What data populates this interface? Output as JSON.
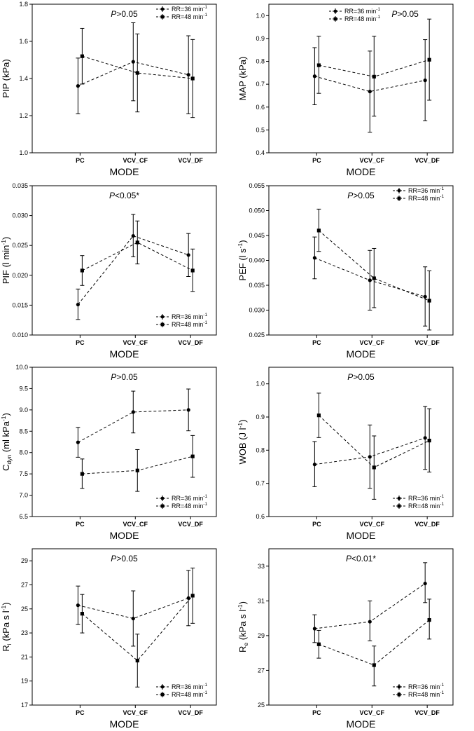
{
  "figure": {
    "background": "#ffffff",
    "ink": "#000000"
  },
  "chart_data": [
    {
      "id": "pip",
      "type": "line",
      "ylabel": "PIP (kPa)",
      "ylabel_parts": [
        {
          "t": "PIP (kPa)"
        }
      ],
      "xlabel": "MODE",
      "categories": [
        "PC",
        "VCV_CF",
        "VCV_DF"
      ],
      "ylim": [
        1.0,
        1.8
      ],
      "yticks": [
        "1.0",
        "1.2",
        "1.4",
        "1.6",
        "1.8"
      ],
      "annotation": {
        "italic": "P",
        "rest": ">0.05",
        "pos": "top-center"
      },
      "legend": {
        "pos": "top-right",
        "entries": [
          "RR=36 min",
          "RR=48 min"
        ],
        "sup": "-1"
      },
      "series": [
        {
          "name": "RR=36 min-1",
          "marker": "circle",
          "values": [
            1.36,
            1.49,
            1.42
          ],
          "err_low": [
            1.21,
            1.28,
            1.21
          ],
          "err_high": [
            1.51,
            1.7,
            1.63
          ]
        },
        {
          "name": "RR=48 min-1",
          "marker": "square",
          "values": [
            1.52,
            1.43,
            1.4
          ],
          "err_low": [
            1.37,
            1.22,
            1.19
          ],
          "err_high": [
            1.67,
            1.64,
            1.61
          ]
        }
      ]
    },
    {
      "id": "map",
      "type": "line",
      "ylabel": "MAP (kPa)",
      "ylabel_parts": [
        {
          "t": "MAP (kPa)"
        }
      ],
      "xlabel": "MODE",
      "categories": [
        "PC",
        "VCV_CF",
        "VCV_DF"
      ],
      "ylim": [
        0.4,
        1.05
      ],
      "yticks": [
        "0.4",
        "0.5",
        "0.6",
        "0.7",
        "0.8",
        "0.9",
        "1.0"
      ],
      "annotation": {
        "italic": "P",
        "rest": ">0.05",
        "pos": "top-right"
      },
      "legend": {
        "pos": "top-left",
        "entries": [
          "RR=36 min",
          "RR=48 min"
        ],
        "sup": "-1"
      },
      "series": [
        {
          "name": "RR=36 min-1",
          "marker": "circle",
          "values": [
            0.735,
            0.668,
            0.717
          ],
          "err_low": [
            0.61,
            0.49,
            0.54
          ],
          "err_high": [
            0.86,
            0.845,
            0.895
          ]
        },
        {
          "name": "RR=48 min-1",
          "marker": "square",
          "values": [
            0.783,
            0.733,
            0.807
          ],
          "err_low": [
            0.66,
            0.56,
            0.63
          ],
          "err_high": [
            0.91,
            0.91,
            0.985
          ]
        }
      ]
    },
    {
      "id": "pif",
      "type": "line",
      "ylabel": "PIF (l min-1)",
      "ylabel_parts": [
        {
          "t": "PIF (l min"
        },
        {
          "t": "-1",
          "sup": true
        },
        {
          "t": ")"
        }
      ],
      "xlabel": "MODE",
      "categories": [
        "PC",
        "VCV_CF",
        "VCV_DF"
      ],
      "ylim": [
        0.01,
        0.035
      ],
      "yticks": [
        "0.010",
        "0.015",
        "0.020",
        "0.025",
        "0.030",
        "0.035"
      ],
      "annotation": {
        "italic": "P",
        "rest": "<0.05*",
        "pos": "top-center"
      },
      "legend": {
        "pos": "bottom-right",
        "entries": [
          "RR=36 min",
          "RR=48 min"
        ],
        "sup": "-1"
      },
      "series": [
        {
          "name": "RR=36 min-1",
          "marker": "circle",
          "values": [
            0.0151,
            0.0266,
            0.0234
          ],
          "err_low": [
            0.0126,
            0.0231,
            0.0198
          ],
          "err_high": [
            0.0177,
            0.0302,
            0.027
          ]
        },
        {
          "name": "RR=48 min-1",
          "marker": "square",
          "values": [
            0.0208,
            0.0255,
            0.0208
          ],
          "err_low": [
            0.0183,
            0.0219,
            0.0173
          ],
          "err_high": [
            0.0233,
            0.0291,
            0.0244
          ]
        }
      ]
    },
    {
      "id": "pef",
      "type": "line",
      "ylabel": "PEF (l s-1)",
      "ylabel_parts": [
        {
          "t": "PEF (l s"
        },
        {
          "t": "-1",
          "sup": true
        },
        {
          "t": ")"
        }
      ],
      "xlabel": "MODE",
      "categories": [
        "PC",
        "VCV_CF",
        "VCV_DF"
      ],
      "ylim": [
        0.025,
        0.055
      ],
      "yticks": [
        "0.025",
        "0.030",
        "0.035",
        "0.040",
        "0.045",
        "0.050",
        "0.055"
      ],
      "annotation": {
        "italic": "P",
        "rest": ">0.05",
        "pos": "top-center"
      },
      "legend": {
        "pos": "top-right",
        "entries": [
          "RR=36 min",
          "RR=48 min"
        ],
        "sup": "-1"
      },
      "series": [
        {
          "name": "RR=36 min-1",
          "marker": "circle",
          "values": [
            0.0405,
            0.036,
            0.0327
          ],
          "err_low": [
            0.0363,
            0.03,
            0.0268
          ],
          "err_high": [
            0.0447,
            0.042,
            0.0387
          ]
        },
        {
          "name": "RR=48 min-1",
          "marker": "square",
          "values": [
            0.046,
            0.0364,
            0.0319
          ],
          "err_low": [
            0.0418,
            0.0305,
            0.026
          ],
          "err_high": [
            0.0503,
            0.0424,
            0.0379
          ]
        }
      ]
    },
    {
      "id": "cdyn",
      "type": "line",
      "ylabel": "Cdyn (ml kPa-1)",
      "ylabel_parts": [
        {
          "t": "C"
        },
        {
          "t": "dyn",
          "sub": true
        },
        {
          "t": " (ml kPa"
        },
        {
          "t": "-1",
          "sup": true
        },
        {
          "t": ")"
        }
      ],
      "xlabel": "MODE",
      "categories": [
        "PC",
        "VCV_CF",
        "VCV_DF"
      ],
      "ylim": [
        6.5,
        10.0
      ],
      "yticks": [
        "6.5",
        "7.0",
        "7.5",
        "8.0",
        "8.5",
        "9.0",
        "9.5",
        "10.0"
      ],
      "annotation": {
        "italic": "P",
        "rest": ">0.05",
        "pos": "top-center"
      },
      "legend": {
        "pos": "bottom-right",
        "entries": [
          "RR=36 min",
          "RR=48 min"
        ],
        "sup": "-1"
      },
      "series": [
        {
          "name": "RR=36 min-1",
          "marker": "circle",
          "values": [
            8.24,
            8.95,
            9.0
          ],
          "err_low": [
            7.89,
            8.46,
            8.51
          ],
          "err_high": [
            8.59,
            9.44,
            9.49
          ]
        },
        {
          "name": "RR=48 min-1",
          "marker": "square",
          "values": [
            7.5,
            7.58,
            7.91
          ],
          "err_low": [
            7.16,
            7.09,
            7.42
          ],
          "err_high": [
            7.85,
            8.07,
            8.4
          ]
        }
      ]
    },
    {
      "id": "wob",
      "type": "line",
      "ylabel": "WOB (J l-1)",
      "ylabel_parts": [
        {
          "t": "WOB (J l"
        },
        {
          "t": "-1",
          "sup": true
        },
        {
          "t": ")"
        }
      ],
      "xlabel": "MODE",
      "categories": [
        "PC",
        "VCV_CF",
        "VCV_DF"
      ],
      "ylim": [
        0.6,
        1.05
      ],
      "yticks": [
        "0.6",
        "0.7",
        "0.8",
        "0.9",
        "1.0"
      ],
      "annotation": {
        "italic": "P",
        "rest": ">0.05",
        "pos": "top-center"
      },
      "legend": {
        "pos": "bottom-right",
        "entries": [
          "RR=36 min",
          "RR=48 min"
        ],
        "sup": "-1"
      },
      "series": [
        {
          "name": "RR=36 min-1",
          "marker": "circle",
          "values": [
            0.757,
            0.78,
            0.837
          ],
          "err_low": [
            0.69,
            0.685,
            0.742
          ],
          "err_high": [
            0.826,
            0.876,
            0.932
          ]
        },
        {
          "name": "RR=48 min-1",
          "marker": "square",
          "values": [
            0.905,
            0.748,
            0.829
          ],
          "err_low": [
            0.838,
            0.652,
            0.734
          ],
          "err_high": [
            0.972,
            0.843,
            0.925
          ]
        }
      ]
    },
    {
      "id": "ri",
      "type": "line",
      "ylabel": "Ri (kPa s l-1)",
      "ylabel_parts": [
        {
          "t": "R"
        },
        {
          "t": "i",
          "sub": true
        },
        {
          "t": " (kPa s l"
        },
        {
          "t": "-1",
          "sup": true
        },
        {
          "t": ")"
        }
      ],
      "xlabel": "MODE",
      "categories": [
        "PC",
        "VCV_CF",
        "VCV_DF"
      ],
      "ylim": [
        17,
        30
      ],
      "yticks": [
        "17",
        "19",
        "21",
        "23",
        "25",
        "27",
        "29"
      ],
      "annotation": {
        "italic": "P",
        "rest": ">0.05",
        "pos": "top-center"
      },
      "legend": {
        "pos": "bottom-right",
        "entries": [
          "RR=36 min",
          "RR=48 min"
        ],
        "sup": "-1"
      },
      "series": [
        {
          "name": "RR=36 min-1",
          "marker": "circle",
          "values": [
            25.3,
            24.2,
            25.9
          ],
          "err_low": [
            23.7,
            21.9,
            23.6
          ],
          "err_high": [
            26.9,
            26.5,
            28.2
          ]
        },
        {
          "name": "RR=48 min-1",
          "marker": "square",
          "values": [
            24.6,
            20.7,
            26.1
          ],
          "err_low": [
            23.0,
            18.5,
            23.8
          ],
          "err_high": [
            26.2,
            22.9,
            28.4
          ]
        }
      ]
    },
    {
      "id": "re",
      "type": "line",
      "ylabel": "Re (kPa s l-1)",
      "ylabel_parts": [
        {
          "t": "R"
        },
        {
          "t": "e",
          "sub": true
        },
        {
          "t": " (kPa s l"
        },
        {
          "t": "-1",
          "sup": true
        },
        {
          "t": ")"
        }
      ],
      "xlabel": "MODE",
      "categories": [
        "PC",
        "VCV_CF",
        "VCV_DF"
      ],
      "ylim": [
        25,
        34
      ],
      "yticks": [
        "25",
        "27",
        "29",
        "31",
        "33"
      ],
      "annotation": {
        "italic": "P",
        "rest": "<0.01*",
        "pos": "top-center"
      },
      "legend": {
        "pos": "bottom-right",
        "entries": [
          "RR=36 min",
          "RR=48 min"
        ],
        "sup": "-1"
      },
      "series": [
        {
          "name": "RR=36 min-1",
          "marker": "circle",
          "values": [
            29.4,
            29.8,
            32.0
          ],
          "err_low": [
            28.6,
            28.7,
            30.9
          ],
          "err_high": [
            30.2,
            31.0,
            33.2
          ]
        },
        {
          "name": "RR=48 min-1",
          "marker": "square",
          "values": [
            28.5,
            27.3,
            29.9
          ],
          "err_low": [
            27.7,
            26.1,
            28.8
          ],
          "err_high": [
            29.3,
            28.4,
            31.1
          ]
        }
      ]
    }
  ]
}
